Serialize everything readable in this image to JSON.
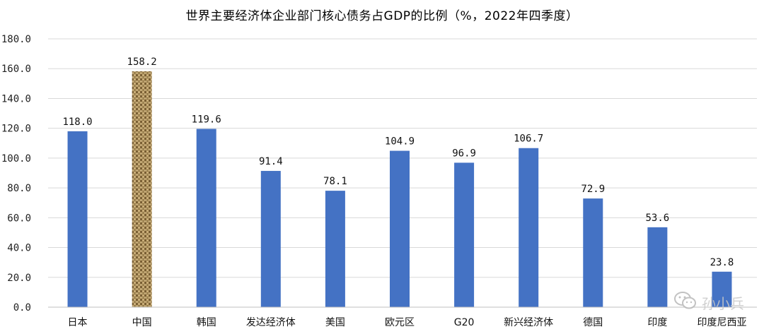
{
  "chart_data": {
    "type": "bar",
    "title": "世界主要经济体企业部门核心债务占GDP的比例（%，2022年四季度）",
    "categories": [
      "日本",
      "中国",
      "韩国",
      "发达经济体",
      "美国",
      "欧元区",
      "G20",
      "新兴经济体",
      "德国",
      "印度",
      "印度尼西亚"
    ],
    "values": [
      118.0,
      158.2,
      119.6,
      91.4,
      78.1,
      104.9,
      96.9,
      106.7,
      72.9,
      53.6,
      23.8
    ],
    "value_labels": [
      "118.0",
      "158.2",
      "119.6",
      "91.4",
      "78.1",
      "104.9",
      "96.9",
      "106.7",
      "72.9",
      "53.6",
      "23.8"
    ],
    "ylim": [
      0,
      180
    ],
    "yticks": [
      "0.0",
      "20.0",
      "40.0",
      "60.0",
      "80.0",
      "100.0",
      "120.0",
      "140.0",
      "160.0",
      "180.0"
    ],
    "grid": true,
    "bar_color": "#4472C4",
    "highlight_index": 1,
    "highlight_fill": "burlap-texture",
    "xlabel": "",
    "ylabel": ""
  },
  "watermark": {
    "text": "孙小兵",
    "icon": "wechat-icon"
  }
}
